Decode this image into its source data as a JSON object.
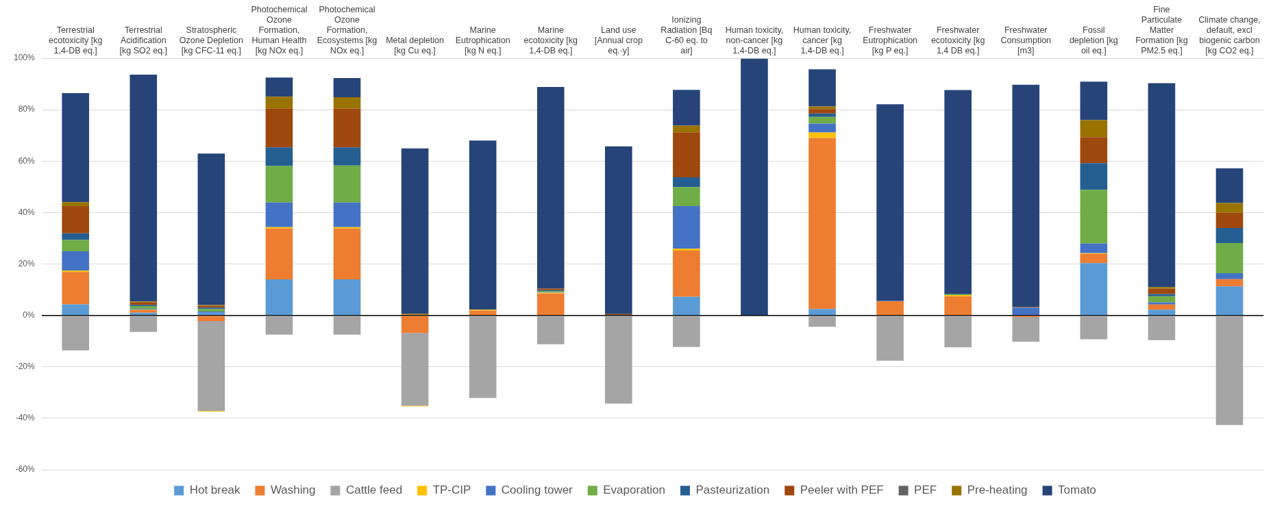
{
  "chart_data": {
    "type": "bar",
    "stacked": true,
    "grid": "y",
    "legend": "bottom",
    "categories": [
      "Terrestrial ecotoxicity [kg 1,4-DB eq.]",
      "Terrestrial Acidification [kg SO2 eq.]",
      "Stratospheric Ozone Depletion [kg CFC-11 eq.]",
      "Photochemical Ozone Formation, Human Health [kg NOx eq.]",
      "Photochemical Ozone Formation, Ecosystems [kg NOx eq.]",
      "Metal depletion [kg Cu eq.]",
      "Marine Eutrophication [kg N eq.]",
      "Marine ecotoxicity [kg 1,4-DB eq.]",
      "Land use [Annual crop eq.·y]",
      "Ionizing Radiation [Bq C-60 eq. to air]",
      "Human toxicity, non-cancer [kg 1,4-DB eq.]",
      "Human toxicity, cancer [kg 1,4-DB eq.]",
      "Freshwater Eutrophication [kg P eq.]",
      "Freshwater ecotoxicity [kg 1,4 DB eq.]",
      "Freshwater Consumption [m3]",
      "Fossil depletion [kg oil eq.]",
      "Fine Particulate Matter Formation [kg PM2.5 eq.]",
      "Climate change, default, excl biogenic carbon [kg CO2 eq.]"
    ],
    "ylim": [
      -60,
      100
    ],
    "yticks": [
      {
        "value": -60,
        "label": "-60%"
      },
      {
        "value": -40,
        "label": "-40%"
      },
      {
        "value": -20,
        "label": "-20%"
      },
      {
        "value": 0,
        "label": "0%"
      },
      {
        "value": 20,
        "label": "20%"
      },
      {
        "value": 40,
        "label": "40%"
      },
      {
        "value": 60,
        "label": "60%"
      },
      {
        "value": 80,
        "label": "80%"
      },
      {
        "value": 100,
        "label": "100%"
      }
    ],
    "series": [
      {
        "name": "Hot break",
        "color": "#5b9bd5",
        "values": [
          4.3,
          1.0,
          1.0,
          14.0,
          14.0,
          0,
          0,
          0,
          0,
          7.2,
          0,
          2.5,
          0,
          0,
          0,
          20.3,
          2.2,
          11.3
        ]
      },
      {
        "name": "Washing",
        "color": "#ed7d31",
        "values": [
          12.6,
          1.0,
          -2.2,
          19.8,
          19.8,
          -6.8,
          1.9,
          8.5,
          0,
          18.0,
          0,
          66.5,
          5.5,
          7.4,
          -0.6,
          3.6,
          2.0,
          2.8
        ]
      },
      {
        "name": "Cattle feed",
        "color": "#a5a5a5",
        "values": [
          -13.6,
          -6.4,
          -34.9,
          -7.5,
          -7.5,
          -28.3,
          -32.1,
          -11.2,
          -34.3,
          -12.3,
          0,
          -4.4,
          -17.6,
          -12.4,
          -9.6,
          -9.3,
          -9.6,
          -42.6
        ]
      },
      {
        "name": "TP-CIP",
        "color": "#ffc000",
        "values": [
          0.5,
          0.2,
          -0.3,
          0.5,
          0.5,
          -0.3,
          0.3,
          0.3,
          0,
          0.7,
          -0.2,
          2.1,
          0,
          0.5,
          0,
          0.3,
          0,
          0
        ]
      },
      {
        "name": "Cooling tower",
        "color": "#4472c4",
        "values": [
          7.5,
          0.4,
          0.5,
          9.6,
          9.6,
          0,
          0,
          0.3,
          0,
          16.6,
          0,
          3.5,
          0.2,
          0,
          3.0,
          3.8,
          0.9,
          2.3
        ]
      },
      {
        "name": "Evaporation",
        "color": "#70ad47",
        "values": [
          4.4,
          1.0,
          1.0,
          14.2,
          14.4,
          0,
          0,
          0.4,
          0,
          7.4,
          0,
          2.6,
          0,
          0.3,
          0,
          20.8,
          2.3,
          11.7
        ]
      },
      {
        "name": "Pasteurization",
        "color": "#255e91",
        "values": [
          2.6,
          0.5,
          0.5,
          7.2,
          7.0,
          0,
          0,
          0.3,
          0,
          3.8,
          0,
          1.3,
          0,
          0,
          0,
          10.4,
          0.9,
          5.9
        ]
      },
      {
        "name": "Peeler with PEF",
        "color": "#9e480e",
        "values": [
          10.6,
          0.9,
          0.7,
          15.2,
          15.1,
          0.3,
          0,
          0.6,
          0.5,
          17.5,
          0,
          1.7,
          0,
          0,
          0.3,
          10.1,
          2.1,
          6.0
        ]
      },
      {
        "name": "PEF",
        "color": "#636363",
        "values": [
          0,
          0,
          0,
          0,
          0,
          0,
          0,
          0,
          0,
          0,
          0,
          0,
          0,
          0,
          0,
          0,
          0,
          0
        ]
      },
      {
        "name": "Pre-heating",
        "color": "#997300",
        "values": [
          1.5,
          0.4,
          0.3,
          4.5,
          4.4,
          0.3,
          0,
          0,
          0,
          2.6,
          0,
          1.0,
          0,
          0,
          0,
          6.6,
          0.6,
          3.7
        ]
      },
      {
        "name": "Tomato",
        "color": "#264478",
        "values": [
          42.4,
          88.2,
          58.9,
          7.5,
          7.5,
          64.3,
          65.8,
          78.4,
          65.2,
          13.9,
          99.8,
          14.5,
          76.4,
          79.4,
          86.4,
          15.0,
          79.3,
          13.5
        ]
      }
    ]
  }
}
